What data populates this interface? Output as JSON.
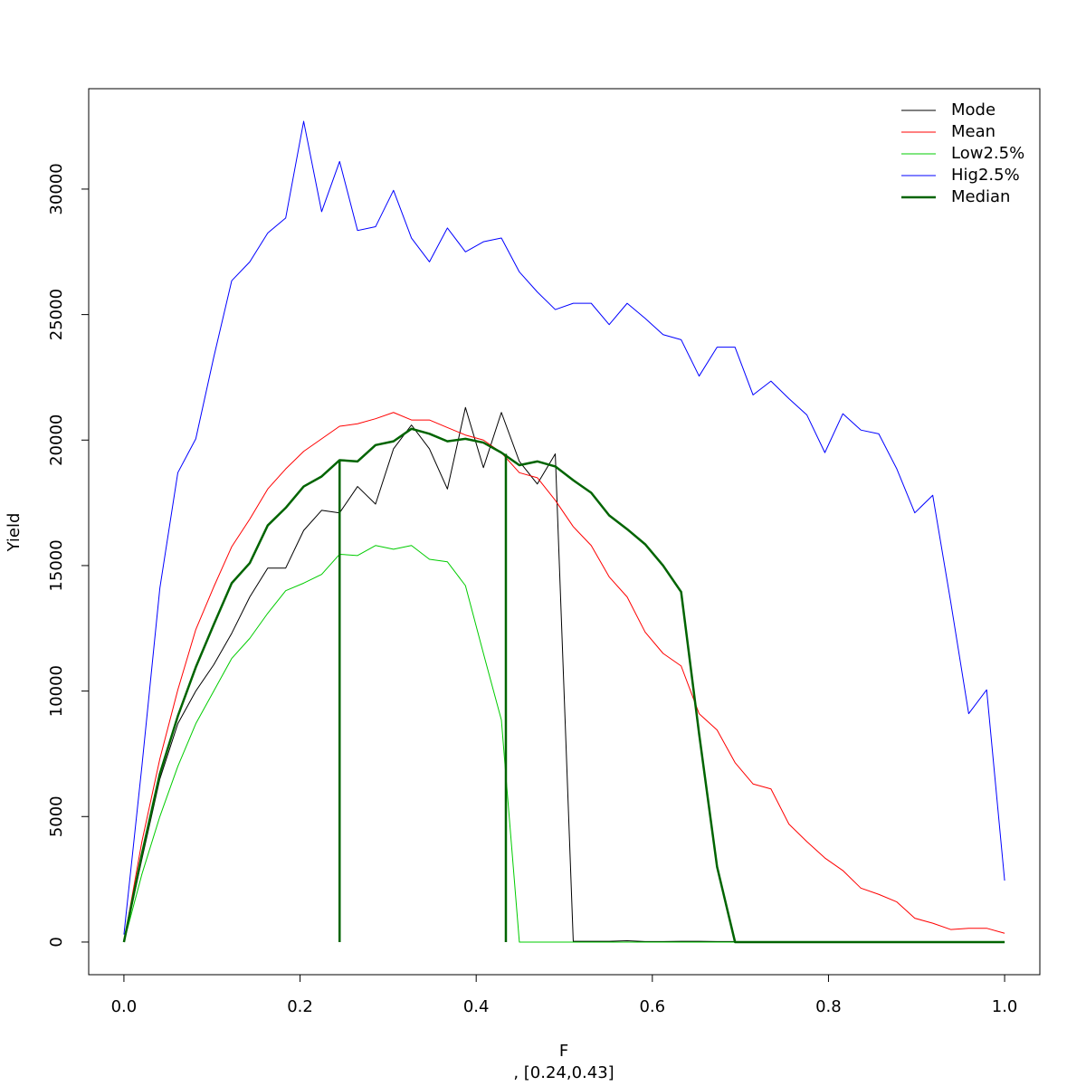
{
  "chart_data": {
    "type": "line",
    "x_label": "F",
    "subtitle": ", [0.24,0.43]",
    "y_label": "Yield",
    "x": [
      0,
      0.0204,
      0.0408,
      0.0612,
      0.0816,
      0.102,
      0.1224,
      0.1429,
      0.1633,
      0.1837,
      0.2041,
      0.2245,
      0.2449,
      0.2653,
      0.2857,
      0.3061,
      0.3265,
      0.3469,
      0.3673,
      0.3878,
      0.4082,
      0.4286,
      0.449,
      0.4694,
      0.4898,
      0.5102,
      0.5306,
      0.551,
      0.5714,
      0.5918,
      0.6122,
      0.6327,
      0.6531,
      0.6735,
      0.6939,
      0.7143,
      0.7347,
      0.7551,
      0.7755,
      0.7959,
      0.8163,
      0.8367,
      0.8571,
      0.8776,
      0.898,
      0.9184,
      0.9388,
      0.9592,
      0.9796,
      1
    ],
    "series": [
      {
        "name": "Mode",
        "color": "#000000",
        "width": 1,
        "values": [
          0,
          3300,
          6500,
          8700,
          10000,
          11050,
          12300,
          13750,
          14900,
          14900,
          16400,
          17200,
          17100,
          18150,
          17450,
          19650,
          20600,
          19650,
          18050,
          21300,
          18900,
          21100,
          19150,
          18250,
          19450,
          30,
          30,
          30,
          50,
          20,
          20,
          30,
          30,
          20,
          20,
          0,
          0,
          0,
          0,
          0,
          0,
          0,
          0,
          0,
          0,
          0,
          0,
          0,
          0,
          0
        ]
      },
      {
        "name": "Mean",
        "color": "#ff0000",
        "width": 1,
        "values": [
          0,
          4000,
          7300,
          10050,
          12450,
          14150,
          15750,
          16850,
          18050,
          18850,
          19550,
          20050,
          20550,
          20650,
          20850,
          21100,
          20800,
          20800,
          20500,
          20200,
          20000,
          19500,
          18700,
          18500,
          17600,
          16550,
          15800,
          14550,
          13750,
          12350,
          11500,
          11000,
          9100,
          8450,
          7150,
          6300,
          6100,
          4700,
          4000,
          3350,
          2850,
          2150,
          1900,
          1600,
          950,
          750,
          500,
          550,
          550,
          350
        ]
      },
      {
        "name": "Low2.5%",
        "color": "#00cc00",
        "width": 1,
        "values": [
          0,
          2700,
          5000,
          7000,
          8700,
          10000,
          11300,
          12100,
          13100,
          14000,
          14300,
          14650,
          15450,
          15400,
          15800,
          15650,
          15800,
          15250,
          15150,
          14200,
          11500,
          8850,
          0,
          0,
          0,
          0,
          0,
          0,
          0,
          0,
          0,
          0,
          0,
          0,
          0,
          0,
          0,
          0,
          0,
          0,
          0,
          0,
          0,
          0,
          0,
          0,
          0,
          0,
          0,
          0
        ]
      },
      {
        "name": "Hig2.5%",
        "color": "#0000ff",
        "width": 1,
        "values": [
          300,
          7000,
          14100,
          18700,
          20050,
          23300,
          26350,
          27100,
          28250,
          28850,
          32700,
          29100,
          31100,
          28350,
          28500,
          29950,
          28050,
          27100,
          28450,
          27500,
          27900,
          28050,
          26700,
          25900,
          25200,
          25450,
          25450,
          24600,
          25450,
          24850,
          24200,
          24000,
          22550,
          23700,
          23700,
          21800,
          22350,
          21650,
          21000,
          19500,
          21050,
          20400,
          20250,
          18850,
          17100,
          17800,
          13550,
          9100,
          10050,
          2450
        ]
      },
      {
        "name": "Median",
        "color": "#006400",
        "width": 2.5,
        "values": [
          0,
          3500,
          6700,
          9000,
          10950,
          12650,
          14300,
          15100,
          16600,
          17300,
          18150,
          18550,
          19200,
          19150,
          19800,
          19950,
          20450,
          20250,
          19950,
          20050,
          19900,
          19500,
          19000,
          19150,
          18950,
          18400,
          17900,
          17000,
          16450,
          15850,
          15000,
          13950,
          8300,
          3000,
          0,
          0,
          0,
          0,
          0,
          0,
          0,
          0,
          0,
          0,
          0,
          0,
          0,
          0,
          0,
          0
        ]
      }
    ],
    "reference_lines": {
      "color": "#006400",
      "x": [
        0.2449,
        0.4337
      ],
      "top": [
        19200,
        19450
      ]
    },
    "xlim": [
      -0.04,
      1.04
    ],
    "ylim": [
      -1300,
      34000
    ],
    "xticks": [
      {
        "value": 0,
        "label": "0.0"
      },
      {
        "value": 0.2,
        "label": "0.2"
      },
      {
        "value": 0.4,
        "label": "0.4"
      },
      {
        "value": 0.6,
        "label": "0.6"
      },
      {
        "value": 0.8,
        "label": "0.8"
      },
      {
        "value": 1,
        "label": "1.0"
      }
    ],
    "yticks": [
      0,
      5000,
      10000,
      15000,
      20000,
      25000,
      30000
    ],
    "legend": "top-right",
    "grid": false
  }
}
